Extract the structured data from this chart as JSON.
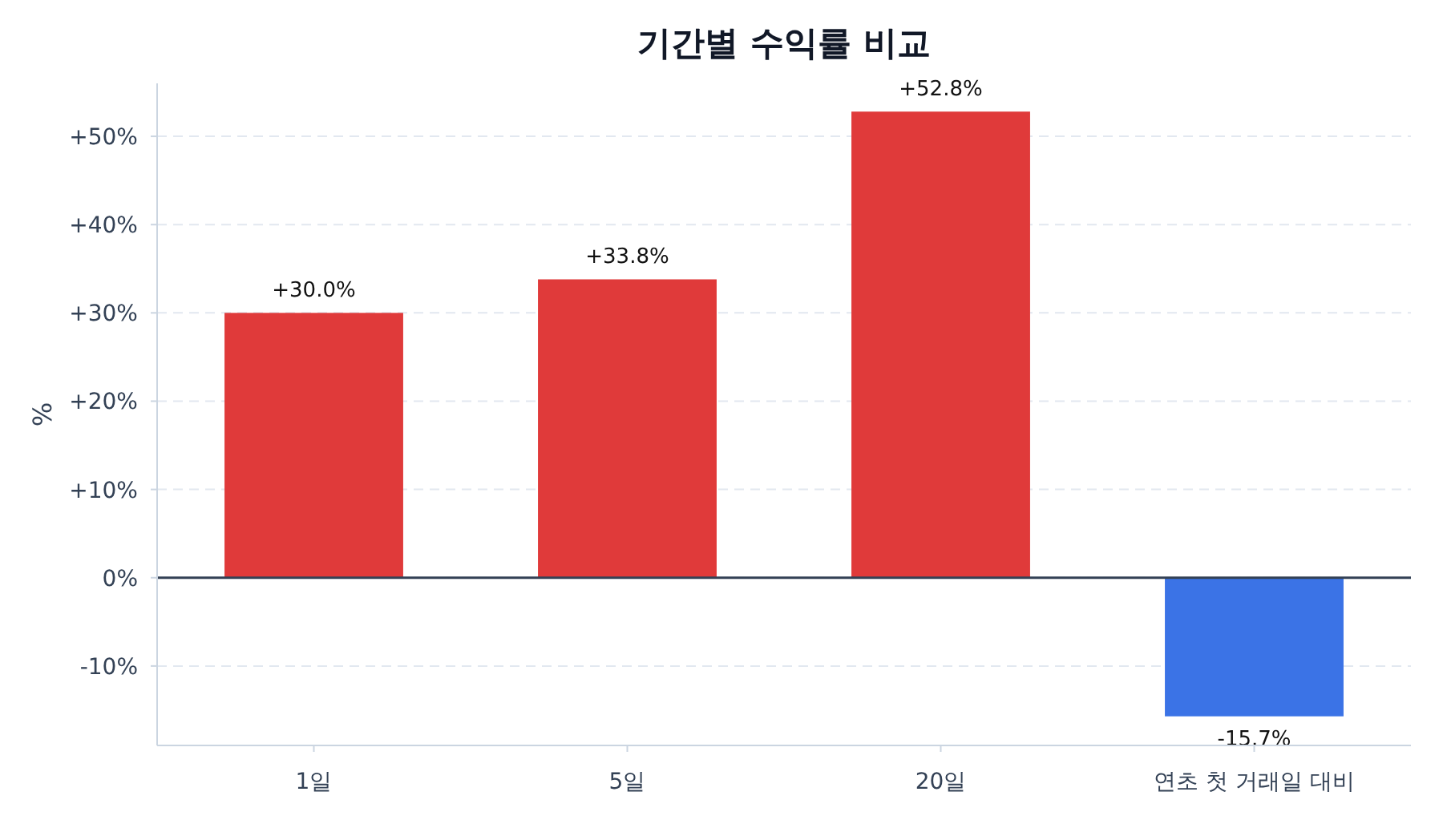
{
  "chart_data": {
    "type": "bar",
    "title": "기간별 수익률 비교",
    "ylabel": "%",
    "categories": [
      "1일",
      "5일",
      "20일",
      "연초 첫 거래일 대비"
    ],
    "values": [
      30.0,
      33.8,
      52.8,
      -15.7
    ],
    "colors": [
      "#e03a3a",
      "#e03a3a",
      "#e03a3a",
      "#3b73e6"
    ],
    "value_labels": [
      "+30.0%",
      "+33.8%",
      "+52.8%",
      "-15.7%"
    ],
    "ylim": [
      -19,
      56
    ],
    "yticks": [
      {
        "value": -10,
        "label": "-10%"
      },
      {
        "value": 0,
        "label": "0%"
      },
      {
        "value": 10,
        "label": "+10%"
      },
      {
        "value": 20,
        "label": "+20%"
      },
      {
        "value": 30,
        "label": "+30%"
      },
      {
        "value": 40,
        "label": "+40%"
      },
      {
        "value": 50,
        "label": "+50%"
      }
    ],
    "ref_lines": [
      {
        "axis": "y",
        "value": 0,
        "color": "#334155"
      }
    ],
    "grid": "y"
  }
}
